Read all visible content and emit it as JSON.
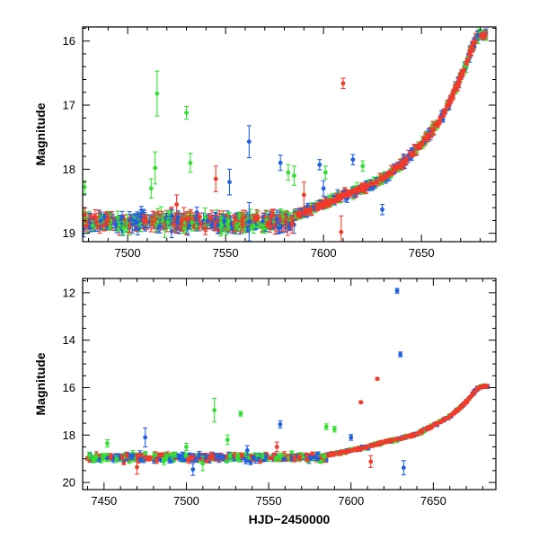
{
  "chart_data": [
    {
      "type": "scatter",
      "title": "",
      "xlabel": "",
      "ylabel": "Magnitude",
      "xlim": [
        7477,
        7688
      ],
      "ylim": [
        19.13,
        15.78
      ],
      "y_inverted": true,
      "xticks": [
        7500,
        7550,
        7600,
        7650
      ],
      "yticks": [
        16,
        17,
        18,
        19
      ],
      "grid": false,
      "legend": "none",
      "errorbars": true,
      "colors": {
        "blue": "#1f5fe0",
        "green": "#32e032",
        "red": "#f23a2a",
        "model": "#000000"
      },
      "baseline": {
        "x_range": [
          7477,
          7585
        ],
        "mag": 18.82,
        "scatter": 0.1
      },
      "rise": [
        [
          7585,
          18.72
        ],
        [
          7600,
          18.55
        ],
        [
          7610,
          18.42
        ],
        [
          7620,
          18.3
        ],
        [
          7630,
          18.15
        ],
        [
          7640,
          17.93
        ],
        [
          7650,
          17.6
        ],
        [
          7660,
          17.22
        ],
        [
          7668,
          16.72
        ],
        [
          7672,
          16.42
        ],
        [
          7676,
          16.08
        ],
        [
          7679,
          15.92
        ],
        [
          7683,
          15.92
        ]
      ],
      "series": [
        {
          "color": "green",
          "points": [
            {
              "x": 7515,
              "y": 16.82,
              "err": 0.35
            },
            {
              "x": 7514,
              "y": 17.98,
              "err": 0.25
            },
            {
              "x": 7530,
              "y": 17.12,
              "err": 0.1
            },
            {
              "x": 7532,
              "y": 17.9,
              "err": 0.15
            },
            {
              "x": 7478,
              "y": 18.28,
              "err": 0.1
            },
            {
              "x": 7512,
              "y": 18.3,
              "err": 0.15
            },
            {
              "x": 7582,
              "y": 18.05,
              "err": 0.12
            },
            {
              "x": 7585,
              "y": 18.1,
              "err": 0.15
            },
            {
              "x": 7601,
              "y": 18.05,
              "err": 0.1
            },
            {
              "x": 7620,
              "y": 17.95,
              "err": 0.08
            }
          ]
        },
        {
          "color": "blue",
          "points": [
            {
              "x": 7562,
              "y": 17.57,
              "err": 0.25
            },
            {
              "x": 7578,
              "y": 17.9,
              "err": 0.12
            },
            {
              "x": 7598,
              "y": 17.93,
              "err": 0.08
            },
            {
              "x": 7615,
              "y": 17.85,
              "err": 0.08
            },
            {
              "x": 7630,
              "y": 18.63,
              "err": 0.08
            },
            {
              "x": 7552,
              "y": 18.2,
              "err": 0.2
            },
            {
              "x": 7600,
              "y": 18.3,
              "err": 0.12
            },
            {
              "x": 7562,
              "y": 18.82,
              "err": 0.3
            }
          ]
        },
        {
          "color": "red",
          "points": [
            {
              "x": 7610,
              "y": 16.66,
              "err": 0.08
            },
            {
              "x": 7545,
              "y": 18.15,
              "err": 0.2
            },
            {
              "x": 7590,
              "y": 18.4,
              "err": 0.2
            },
            {
              "x": 7609,
              "y": 18.98,
              "err": 0.25
            },
            {
              "x": 7525,
              "y": 18.55,
              "err": 0.15
            }
          ]
        }
      ]
    },
    {
      "type": "scatter",
      "title": "",
      "xlabel": "HJD−2450000",
      "ylabel": "Magnitude",
      "xlim": [
        7437,
        7688
      ],
      "ylim": [
        20.3,
        11.4
      ],
      "y_inverted": true,
      "xticks": [
        7450,
        7500,
        7550,
        7600,
        7650
      ],
      "yticks": [
        12,
        14,
        16,
        18,
        20
      ],
      "grid": false,
      "legend": "none",
      "errorbars": true,
      "colors": {
        "blue": "#1f5fe0",
        "green": "#32e032",
        "red": "#f23a2a",
        "model": "#000000"
      },
      "baseline": {
        "x_range": [
          7440,
          7585
        ],
        "mag": 18.95,
        "scatter": 0.14
      },
      "rise": [
        [
          7585,
          18.85
        ],
        [
          7600,
          18.65
        ],
        [
          7610,
          18.5
        ],
        [
          7620,
          18.3
        ],
        [
          7630,
          18.15
        ],
        [
          7640,
          17.95
        ],
        [
          7650,
          17.6
        ],
        [
          7660,
          17.22
        ],
        [
          7668,
          16.75
        ],
        [
          7672,
          16.45
        ],
        [
          7676,
          16.1
        ],
        [
          7679,
          15.95
        ],
        [
          7683,
          15.95
        ]
      ],
      "series": [
        {
          "color": "blue",
          "points": [
            {
              "x": 7628,
              "y": 11.92,
              "err": 0.1
            },
            {
              "x": 7630,
              "y": 14.6,
              "err": 0.1
            },
            {
              "x": 7557,
              "y": 17.55,
              "err": 0.15
            },
            {
              "x": 7537,
              "y": 18.65,
              "err": 0.2
            },
            {
              "x": 7632,
              "y": 19.38,
              "err": 0.3
            },
            {
              "x": 7504,
              "y": 19.45,
              "err": 0.25
            },
            {
              "x": 7600,
              "y": 18.1,
              "err": 0.12
            },
            {
              "x": 7475,
              "y": 18.1,
              "err": 0.4
            }
          ]
        },
        {
          "color": "red",
          "points": [
            {
              "x": 7616,
              "y": 15.63,
              "err": 0.05
            },
            {
              "x": 7606,
              "y": 16.62,
              "err": 0.05
            },
            {
              "x": 7612,
              "y": 19.12,
              "err": 0.25
            },
            {
              "x": 7470,
              "y": 19.35,
              "err": 0.3
            },
            {
              "x": 7555,
              "y": 18.5,
              "err": 0.2
            }
          ]
        },
        {
          "color": "green",
          "points": [
            {
              "x": 7517,
              "y": 16.95,
              "err": 0.5
            },
            {
              "x": 7533,
              "y": 17.1,
              "err": 0.1
            },
            {
              "x": 7585,
              "y": 17.65,
              "err": 0.12
            },
            {
              "x": 7590,
              "y": 17.75,
              "err": 0.12
            },
            {
              "x": 7452,
              "y": 18.35,
              "err": 0.15
            },
            {
              "x": 7500,
              "y": 18.5,
              "err": 0.15
            },
            {
              "x": 7510,
              "y": 19.2,
              "err": 0.3
            },
            {
              "x": 7525,
              "y": 18.2,
              "err": 0.2
            }
          ]
        }
      ]
    }
  ]
}
